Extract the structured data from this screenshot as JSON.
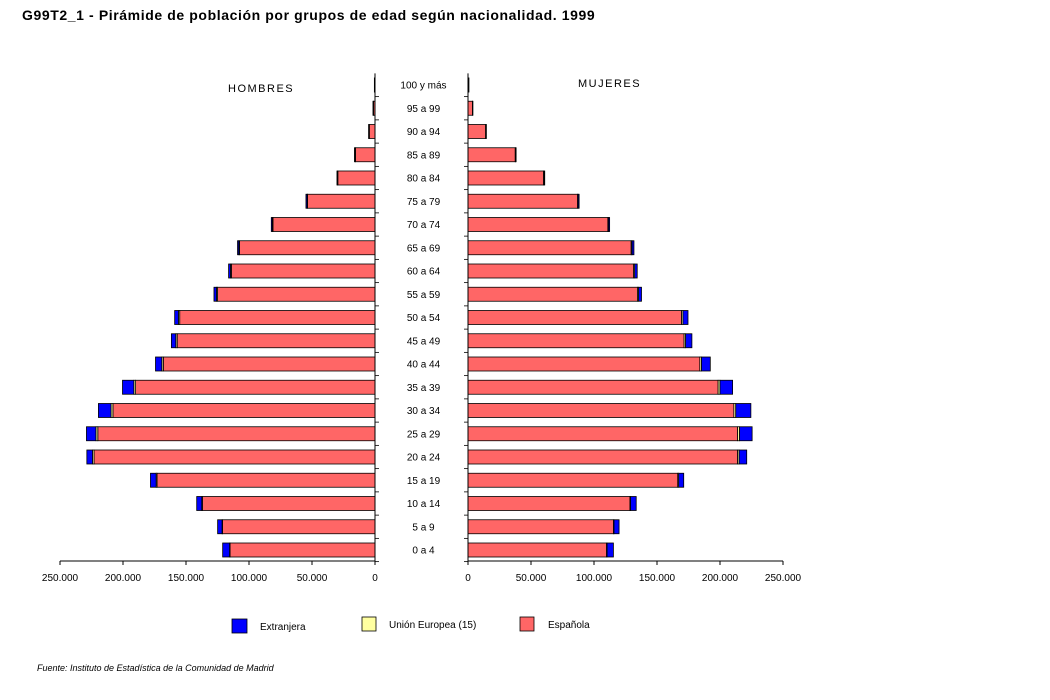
{
  "chart_data": {
    "type": "bar",
    "orientation": "horizontal-pyramid",
    "title": "G99T2_1 - Pirámide de población por grupos de edad según nacionalidad.  1999",
    "left_label": "HOMBRES",
    "right_label": "MUJERES",
    "source": "Fuente: Instituto de Estadística de la Comunidad de Madrid",
    "xlim": [
      0,
      250000
    ],
    "x_ticks_left": [
      "250.000",
      "200.000",
      "150.000",
      "100.000",
      "50.000",
      "0"
    ],
    "x_ticks_right": [
      "0",
      "50.000",
      "100.000",
      "150.000",
      "200.000",
      "250.000"
    ],
    "categories": [
      "100 y más",
      "95 a 99",
      "90 a 94",
      "85 a 89",
      "80 a 84",
      "75 a 79",
      "70 a 74",
      "65 a 69",
      "60 a 64",
      "55 a 59",
      "50 a 54",
      "45 a 49",
      "40 a 44",
      "35 a 39",
      "30 a 34",
      "25 a 29",
      "20 a 24",
      "15 a 19",
      "10 a 14",
      "5 a 9",
      "0 a 4"
    ],
    "legend": [
      {
        "name": "Extranjera",
        "color": "#0000ff"
      },
      {
        "name": "Unión Europea (15)",
        "color": "#ffffa0"
      },
      {
        "name": "Española",
        "color": "#ff6666"
      }
    ],
    "series_order": [
      "Española",
      "Unión Europea (15)",
      "Extranjera"
    ],
    "hombres": {
      "Española": [
        300,
        1200,
        4500,
        15500,
        29500,
        53500,
        81000,
        107500,
        114000,
        125000,
        155000,
        157000,
        168000,
        190000,
        208000,
        220000,
        223000,
        173000,
        137000,
        121000,
        115000
      ],
      "Unión Europea (15)": [
        100,
        200,
        300,
        300,
        300,
        400,
        500,
        600,
        700,
        800,
        1000,
        1100,
        1200,
        1400,
        1500,
        1500,
        1200,
        700,
        500,
        400,
        400
      ],
      "Extranjera": [
        100,
        200,
        300,
        500,
        400,
        900,
        800,
        1000,
        1500,
        2000,
        3000,
        3500,
        5000,
        9000,
        10000,
        7500,
        4500,
        4500,
        4000,
        3500,
        5500
      ]
    },
    "mujeres": {
      "Española": [
        500,
        3500,
        14000,
        37500,
        60000,
        87000,
        111000,
        129500,
        131500,
        134500,
        169500,
        171500,
        184000,
        198500,
        211000,
        214000,
        214000,
        166500,
        128500,
        115500,
        110000
      ],
      "Unión Europea (15)": [
        100,
        200,
        300,
        300,
        300,
        400,
        500,
        700,
        800,
        900,
        1100,
        1200,
        1300,
        1500,
        1500,
        1500,
        1200,
        700,
        500,
        400,
        400
      ],
      "Extranjera": [
        100,
        200,
        300,
        400,
        600,
        800,
        900,
        1500,
        2000,
        2300,
        4000,
        5000,
        7000,
        10000,
        12000,
        10000,
        6000,
        4000,
        4500,
        4000,
        5000
      ]
    }
  }
}
